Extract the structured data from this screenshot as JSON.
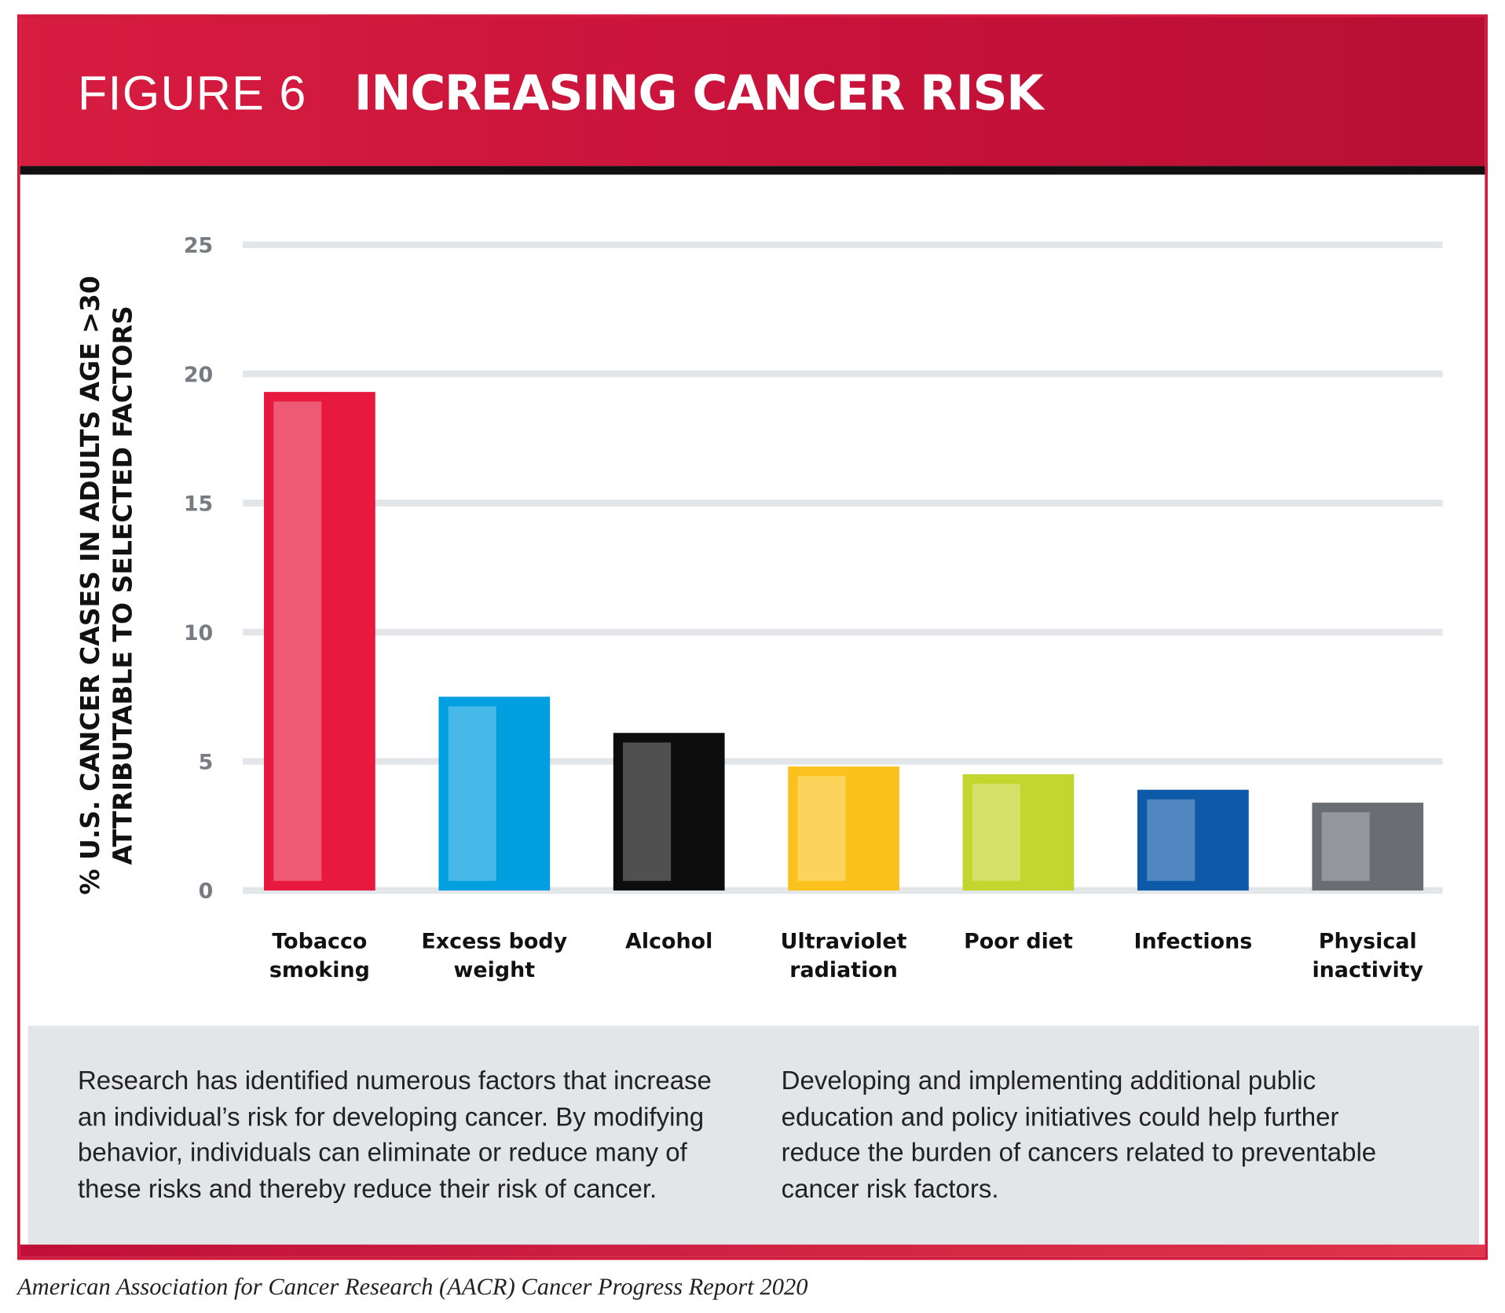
{
  "chart_data": {
    "type": "bar",
    "figure_label": "FIGURE 6",
    "title": "INCREASING CANCER RISK",
    "y_label": [
      "% U.S. CANCER CASES IN ADULTS AGE >30",
      "ATTRIBUTABLE TO SELECTED FACTORS"
    ],
    "categories": [
      "Tobacco smoking",
      "Excess body weight",
      "Alcohol",
      "Ultraviolet radiation",
      "Poor diet",
      "Infections",
      "Physical inactivity"
    ],
    "values": [
      19.3,
      7.5,
      6.1,
      4.8,
      4.5,
      3.9,
      3.4
    ],
    "colors": [
      "#e8193f",
      "#009fe0",
      "#0d0d0d",
      "#fbc21d",
      "#c2d62e",
      "#0f59a9",
      "#6a6e73"
    ],
    "ylim": [
      0,
      25
    ],
    "yticks": [
      0,
      5,
      10,
      15,
      20,
      25
    ],
    "grid": true,
    "description": "Research has identified numerous factors that increase an individual’s risk for developing cancer. By modifying behavior, individuals can eliminate or reduce many of these risks and thereby reduce their risk of cancer. Developing and implementing additional public education and policy initiatives could help further reduce the burden of cancers related to preventable cancer risk factors.",
    "source": "American Association for Cancer Research (AACR) Cancer Progress Report 2020"
  }
}
